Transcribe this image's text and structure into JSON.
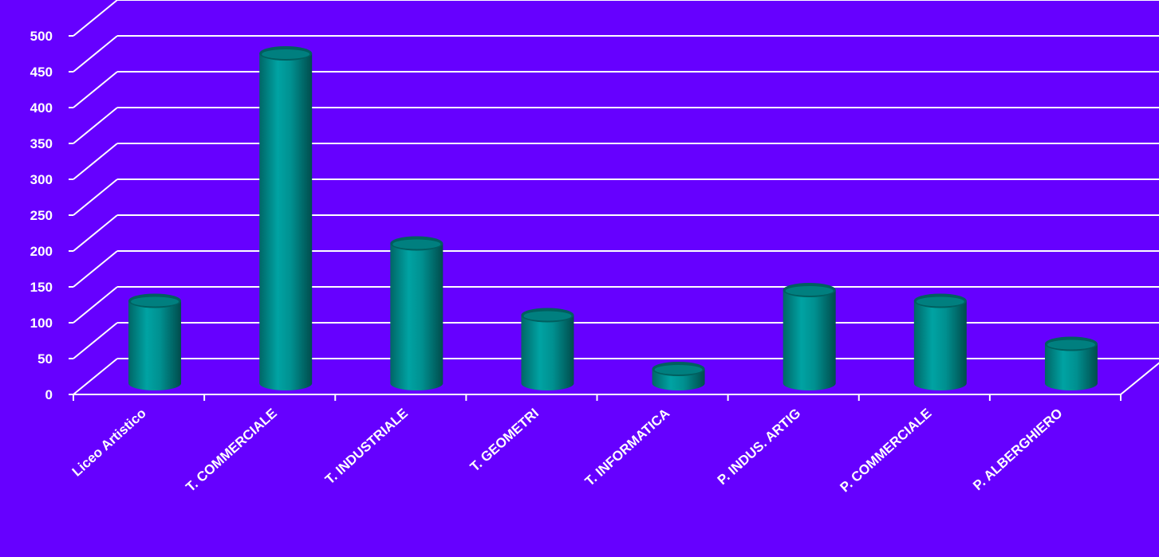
{
  "colors": {
    "background": "#6600ff",
    "grid": "#ffffff",
    "bar_main": "#009999",
    "bar_dark": "#005f5f",
    "bar_light": "#33cccc"
  },
  "chart_data": {
    "type": "bar",
    "style": "3d-cylinder",
    "categories": [
      "Liceo Artistico",
      "T. COMMERCIALE",
      "T. INDUSTRIALE",
      "T. GEOMETRI",
      "T. INFORMATICA",
      "P. INDUS. ARTIG",
      "P. COMMERCIALE",
      "P. ALBERGHIERO"
    ],
    "values": [
      115,
      460,
      195,
      95,
      20,
      130,
      115,
      55
    ],
    "yticks": [
      "0",
      "50",
      "100",
      "150",
      "200",
      "250",
      "300",
      "350",
      "400",
      "450",
      "500"
    ],
    "ylim": [
      0,
      500
    ],
    "grid": true,
    "legend": "none",
    "title": "",
    "xlabel": "",
    "ylabel": ""
  }
}
